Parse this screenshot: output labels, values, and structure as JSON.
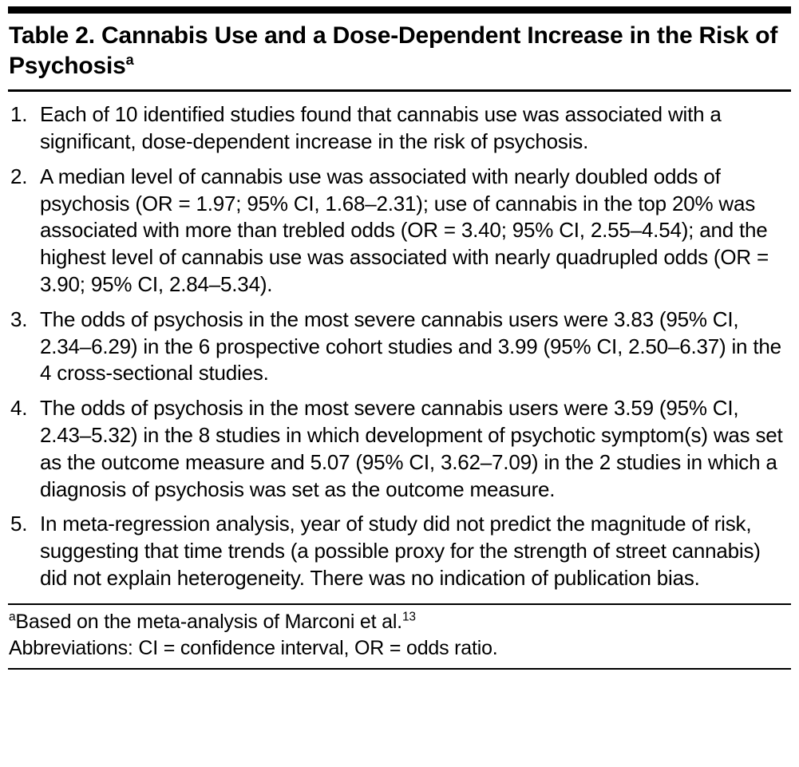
{
  "table": {
    "title": "Table 2. Cannabis Use and a Dose-Dependent Increase in the Risk of Psychosis",
    "title_marker": "a",
    "items": [
      {
        "num": "1.",
        "text": "Each of 10 identified studies found that cannabis use was associated with a significant, dose-dependent increase in the risk of psychosis."
      },
      {
        "num": "2.",
        "text": "A median level of cannabis use was associated with nearly doubled odds of psychosis (OR = 1.97; 95% CI, 1.68–2.31); use of cannabis in the top 20% was associated with more than trebled odds (OR = 3.40; 95% CI, 2.55–4.54); and the highest level of cannabis use was associated with nearly quadrupled odds (OR = 3.90; 95% CI, 2.84–5.34)."
      },
      {
        "num": "3.",
        "text": "The odds of psychosis in the most severe cannabis users were 3.83 (95% CI, 2.34–6.29) in the 6 prospective cohort studies and 3.99 (95% CI, 2.50–6.37) in the 4 cross-sectional studies."
      },
      {
        "num": "4.",
        "text": "The odds of psychosis in the most severe cannabis users were 3.59 (95% CI, 2.43–5.32) in the 8 studies in which development of psychotic symptom(s) was set as the outcome measure and 5.07 (95% CI, 3.62–7.09) in the 2 studies in which a diagnosis of psychosis was set as the outcome measure."
      },
      {
        "num": "5.",
        "text": "In meta-regression analysis, year of study did not predict the magnitude of risk, suggesting that time trends (a possible proxy for the strength of street cannabis) did not explain heterogeneity. There was no indication of publication bias."
      }
    ],
    "footnote": {
      "marker": "a",
      "text": "Based on the meta-analysis of Marconi et al.",
      "ref": "13"
    },
    "abbreviations": "Abbreviations: CI = confidence interval, OR = odds ratio."
  }
}
